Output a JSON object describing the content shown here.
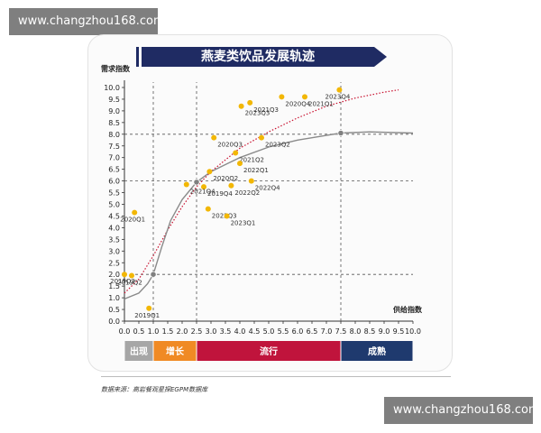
{
  "watermarks": {
    "top": "www.changzhou168.com",
    "bottom": "www.changzhou168.com"
  },
  "source_note": "数据来源：高岩餐观星探EGPM数据库",
  "colors": {
    "title_bg": "#1f2b63",
    "point": "#f2b705",
    "fit_red": "#c8102e",
    "fit_gray": "#8a8a8a",
    "marker_gray": "#808080",
    "stage_emerge": "#a6a6a6",
    "stage_grow": "#f08a24",
    "stage_popular": "#c0143c",
    "stage_mature": "#1f3a6e"
  },
  "chart_data": {
    "type": "scatter",
    "title": "燕麦类饮品发展轨迹",
    "xlabel": "供给指数",
    "ylabel": "需求指数",
    "xlim": [
      0,
      10
    ],
    "ylim": [
      0,
      10
    ],
    "xticks": [
      "0.0",
      "0.5",
      "1.0",
      "1.5",
      "2.0",
      "2.5",
      "3.0",
      "3.5",
      "4.0",
      "4.5",
      "5.0",
      "5.5",
      "6.0",
      "6.5",
      "7.0",
      "7.5",
      "8.0",
      "8.5",
      "9.0",
      "9.5",
      "10.0"
    ],
    "yticks": [
      "0.0",
      "0.5",
      "1.0",
      "1.5",
      "2.0",
      "2.5",
      "3.0",
      "3.5",
      "4.0",
      "4.5",
      "5.0",
      "5.5",
      "6.0",
      "6.5",
      "7.0",
      "7.5",
      "8.0",
      "8.5",
      "9.0",
      "9.5",
      "10.0"
    ],
    "points": [
      {
        "label": "2019Q1",
        "x": 0.85,
        "y": 0.55
      },
      {
        "label": "2019Q2",
        "x": 0.25,
        "y": 1.95
      },
      {
        "label": "2019Q3",
        "x": 0.0,
        "y": 2.0
      },
      {
        "label": "2019Q4",
        "x": 2.75,
        "y": 5.75
      },
      {
        "label": "2020Q1",
        "x": 0.35,
        "y": 4.65
      },
      {
        "label": "2020Q2",
        "x": 2.95,
        "y": 6.4
      },
      {
        "label": "2020Q3",
        "x": 3.1,
        "y": 7.85
      },
      {
        "label": "2020Q4",
        "x": 5.45,
        "y": 9.6
      },
      {
        "label": "2021Q1",
        "x": 6.25,
        "y": 9.6
      },
      {
        "label": "2021Q2",
        "x": 3.85,
        "y": 7.2
      },
      {
        "label": "2021Q3",
        "x": 4.35,
        "y": 9.35
      },
      {
        "label": "2021Q4",
        "x": 2.15,
        "y": 5.85
      },
      {
        "label": "2022Q1",
        "x": 4.0,
        "y": 6.75
      },
      {
        "label": "2022Q2",
        "x": 3.7,
        "y": 5.8
      },
      {
        "label": "2022Q3",
        "x": 2.9,
        "y": 4.8
      },
      {
        "label": "2022Q4",
        "x": 4.4,
        "y": 6.0
      },
      {
        "label": "2023Q1",
        "x": 3.55,
        "y": 4.5
      },
      {
        "label": "2023Q2",
        "x": 4.75,
        "y": 7.85
      },
      {
        "label": "2023Q3",
        "x": 4.05,
        "y": 9.2
      },
      {
        "label": "2023Q4",
        "x": 7.45,
        "y": 9.9
      }
    ],
    "fits": [
      {
        "name": "trend-red-dotted",
        "style": "dotted",
        "points": [
          [
            0,
            1.2
          ],
          [
            0.5,
            1.8
          ],
          [
            1,
            2.8
          ],
          [
            1.5,
            3.9
          ],
          [
            2,
            4.9
          ],
          [
            2.5,
            5.75
          ],
          [
            3,
            6.4
          ],
          [
            4,
            7.4
          ],
          [
            5,
            8.1
          ],
          [
            6,
            8.7
          ],
          [
            7,
            9.2
          ],
          [
            8,
            9.55
          ],
          [
            9,
            9.8
          ],
          [
            9.5,
            9.9
          ]
        ]
      },
      {
        "name": "trend-gray-scurve",
        "style": "solid",
        "points": [
          [
            0,
            0.95
          ],
          [
            0.5,
            1.2
          ],
          [
            0.8,
            1.6
          ],
          [
            1,
            2.0
          ],
          [
            1.3,
            3.2
          ],
          [
            1.6,
            4.3
          ],
          [
            2,
            5.2
          ],
          [
            2.5,
            5.95
          ],
          [
            3,
            6.4
          ],
          [
            4,
            7.0
          ],
          [
            5,
            7.45
          ],
          [
            6,
            7.75
          ],
          [
            7,
            7.95
          ],
          [
            7.5,
            8.05
          ],
          [
            8.5,
            8.1
          ],
          [
            10,
            8.05
          ]
        ]
      }
    ],
    "stage_markers": [
      {
        "x": 1.0,
        "y": 2.0
      },
      {
        "x": 2.5,
        "y": 5.95
      },
      {
        "x": 7.5,
        "y": 8.05
      }
    ],
    "stages": [
      {
        "label": "出现",
        "from": 0.0,
        "to": 1.0
      },
      {
        "label": "增长",
        "from": 1.0,
        "to": 2.5
      },
      {
        "label": "流行",
        "from": 2.5,
        "to": 7.5
      },
      {
        "label": "成熟",
        "from": 7.5,
        "to": 10.0
      }
    ],
    "guide_lines": {
      "vertical_x": [
        1.0,
        2.5,
        7.5
      ],
      "horizontal_y": [
        2.0,
        6.0,
        8.0
      ]
    }
  }
}
